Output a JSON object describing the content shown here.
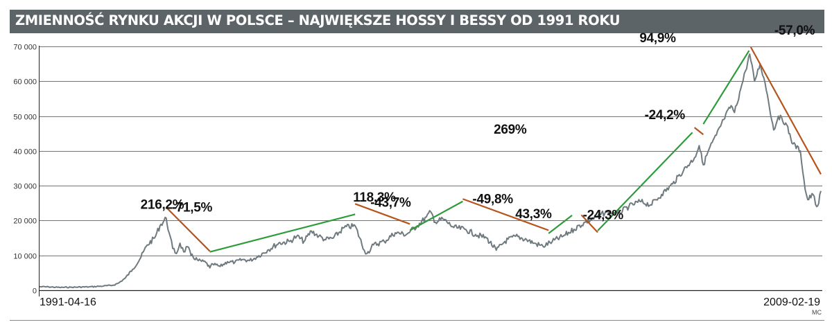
{
  "chart_data": {
    "type": "line",
    "title": "ZMIENNOŚĆ RYNKU AKCJI W POLSCE – NAJWIĘKSZE HOSSY I BESSY OD 1991 ROKU",
    "credit": "MC",
    "x_start_label": "1991-04-16",
    "x_end_label": "2009-02-19",
    "x_range": [
      "1991-04-16",
      "2009-02-19"
    ],
    "ylim": [
      0,
      70000
    ],
    "yticks": [
      0,
      10000,
      20000,
      30000,
      40000,
      50000,
      60000,
      70000
    ],
    "ytick_labels": [
      "0",
      "10 000",
      "20 000",
      "30 000",
      "40 000",
      "50 000",
      "60 000",
      "70 000"
    ],
    "grid": true,
    "colors": {
      "title_bar": "#5d6468",
      "series_line": "#6f7a7f",
      "bull_trend": "#2e9b3a",
      "bear_trend": "#b5541c",
      "gridline": "#444444"
    },
    "series": [
      {
        "points": [
          [
            "1991-04-16",
            1000
          ],
          [
            "1991-07-01",
            950
          ],
          [
            "1991-10-01",
            800
          ],
          [
            "1992-01-02",
            850
          ],
          [
            "1992-06-01",
            950
          ],
          [
            "1992-10-01",
            1200
          ],
          [
            "1992-12-15",
            1400
          ],
          [
            "1993-02-01",
            2000
          ],
          [
            "1993-04-01",
            3500
          ],
          [
            "1993-06-01",
            6000
          ],
          [
            "1993-08-01",
            9000
          ],
          [
            "1993-10-01",
            13000
          ],
          [
            "1993-12-01",
            15000
          ],
          [
            "1994-01-15",
            18500
          ],
          [
            "1994-03-08",
            20700
          ],
          [
            "1994-04-01",
            16500
          ],
          [
            "1994-05-01",
            12000
          ],
          [
            "1994-06-01",
            10500
          ],
          [
            "1994-07-01",
            13500
          ],
          [
            "1994-08-01",
            11000
          ],
          [
            "1994-09-01",
            12500
          ],
          [
            "1994-10-01",
            10000
          ],
          [
            "1994-12-01",
            8500
          ],
          [
            "1995-02-01",
            8000
          ],
          [
            "1995-03-07",
            6400
          ],
          [
            "1995-04-01",
            7500
          ],
          [
            "1995-06-01",
            6800
          ],
          [
            "1995-08-01",
            8200
          ],
          [
            "1995-10-01",
            8000
          ],
          [
            "1995-12-01",
            8800
          ],
          [
            "1996-02-01",
            8500
          ],
          [
            "1996-04-01",
            9500
          ],
          [
            "1996-07-01",
            11500
          ],
          [
            "1996-10-01",
            13500
          ],
          [
            "1997-01-01",
            14000
          ],
          [
            "1997-03-01",
            15500
          ],
          [
            "1997-05-01",
            14000
          ],
          [
            "1997-07-01",
            17000
          ],
          [
            "1997-09-01",
            15500
          ],
          [
            "1997-10-28",
            14500
          ],
          [
            "1998-01-01",
            15000
          ],
          [
            "1998-04-01",
            18000
          ],
          [
            "1998-07-01",
            18500
          ],
          [
            "1998-09-15",
            11500
          ],
          [
            "1998-10-08",
            10500
          ],
          [
            "1998-12-01",
            13000
          ],
          [
            "1999-03-01",
            14000
          ],
          [
            "1999-06-01",
            16500
          ],
          [
            "1999-09-01",
            16000
          ],
          [
            "1999-12-01",
            18500
          ],
          [
            "2000-02-15",
            21000
          ],
          [
            "2000-03-23",
            22500
          ],
          [
            "2000-05-01",
            19500
          ],
          [
            "2000-07-01",
            20500
          ],
          [
            "2000-10-01",
            18000
          ],
          [
            "2001-01-01",
            17500
          ],
          [
            "2001-04-01",
            16000
          ],
          [
            "2001-07-01",
            15000
          ],
          [
            "2001-09-21",
            11500
          ],
          [
            "2001-12-01",
            14000
          ],
          [
            "2002-03-01",
            15500
          ],
          [
            "2002-06-01",
            14500
          ],
          [
            "2002-08-01",
            13500
          ],
          [
            "2002-10-15",
            12600
          ],
          [
            "2003-01-01",
            14000
          ],
          [
            "2003-04-01",
            15500
          ],
          [
            "2003-07-01",
            17500
          ],
          [
            "2003-10-01",
            19500
          ],
          [
            "2004-01-01",
            21000
          ],
          [
            "2004-04-01",
            22500
          ],
          [
            "2004-07-01",
            22000
          ],
          [
            "2004-10-01",
            24000
          ],
          [
            "2005-01-01",
            25500
          ],
          [
            "2005-04-01",
            24500
          ],
          [
            "2005-07-01",
            27500
          ],
          [
            "2005-10-01",
            30500
          ],
          [
            "2006-01-01",
            34500
          ],
          [
            "2006-04-01",
            38000
          ],
          [
            "2006-05-10",
            41500
          ],
          [
            "2006-06-14",
            36000
          ],
          [
            "2006-08-01",
            40500
          ],
          [
            "2006-10-01",
            44500
          ],
          [
            "2006-12-01",
            49000
          ],
          [
            "2007-02-01",
            53000
          ],
          [
            "2007-03-01",
            51000
          ],
          [
            "2007-05-01",
            59000
          ],
          [
            "2007-06-01",
            63000
          ],
          [
            "2007-07-06",
            67800
          ],
          [
            "2007-08-15",
            60000
          ],
          [
            "2007-10-01",
            65000
          ],
          [
            "2007-11-01",
            61000
          ],
          [
            "2007-12-01",
            56000
          ],
          [
            "2008-01-22",
            46000
          ],
          [
            "2008-03-01",
            50000
          ],
          [
            "2008-05-01",
            48000
          ],
          [
            "2008-07-01",
            42000
          ],
          [
            "2008-09-01",
            40000
          ],
          [
            "2008-10-10",
            29000
          ],
          [
            "2008-11-01",
            26000
          ],
          [
            "2008-12-15",
            27500
          ],
          [
            "2009-01-15",
            24000
          ],
          [
            "2009-02-01",
            25000
          ],
          [
            "2009-02-19",
            28500
          ]
        ]
      }
    ],
    "annotations": [
      {
        "label": "-71,5%",
        "kind": "bear",
        "start": [
          "1994-03-08",
          23800
        ],
        "end": [
          "1995-03-07",
          11200
        ]
      },
      {
        "label": "216,2%",
        "kind": "bull",
        "start": [
          "1995-03-07",
          11000
        ],
        "end": [
          "1998-07-01",
          21800
        ]
      },
      {
        "label": "-43,7%",
        "kind": "bear",
        "start": [
          "1998-07-01",
          24800
        ],
        "end": [
          "1999-10-01",
          19000
        ]
      },
      {
        "label": "118,3%",
        "kind": "bull",
        "start": [
          "1999-10-01",
          17200
        ],
        "end": [
          "2000-12-15",
          25500
        ]
      },
      {
        "label": "-49,8%",
        "kind": "bear",
        "start": [
          "2000-12-15",
          26200
        ],
        "end": [
          "2002-12-01",
          17200
        ]
      },
      {
        "label": "43,3%",
        "kind": "bull",
        "start": [
          "2002-12-01",
          16300
        ],
        "end": [
          "2003-06-15",
          21500
        ]
      },
      {
        "label": "-24,3%",
        "kind": "bear",
        "start": [
          "2003-09-01",
          21600
        ],
        "end": [
          "2004-01-15",
          16600
        ]
      },
      {
        "label": "269%",
        "kind": "bull",
        "start": [
          "2004-01-15",
          17100
        ],
        "end": [
          "2006-03-15",
          45300
        ]
      },
      {
        "label": "-24,2%",
        "kind": "bear",
        "start": [
          "2006-04-01",
          46700
        ],
        "end": [
          "2006-06-14",
          44700
        ]
      },
      {
        "label": "94,9%",
        "kind": "bull",
        "start": [
          "2006-06-14",
          47700
        ],
        "end": [
          "2007-07-01",
          68800
        ]
      },
      {
        "label": "-57,0%",
        "kind": "bear",
        "start": [
          "2007-07-15",
          69800
        ],
        "end": [
          "2009-02-19",
          33300
        ]
      }
    ]
  }
}
